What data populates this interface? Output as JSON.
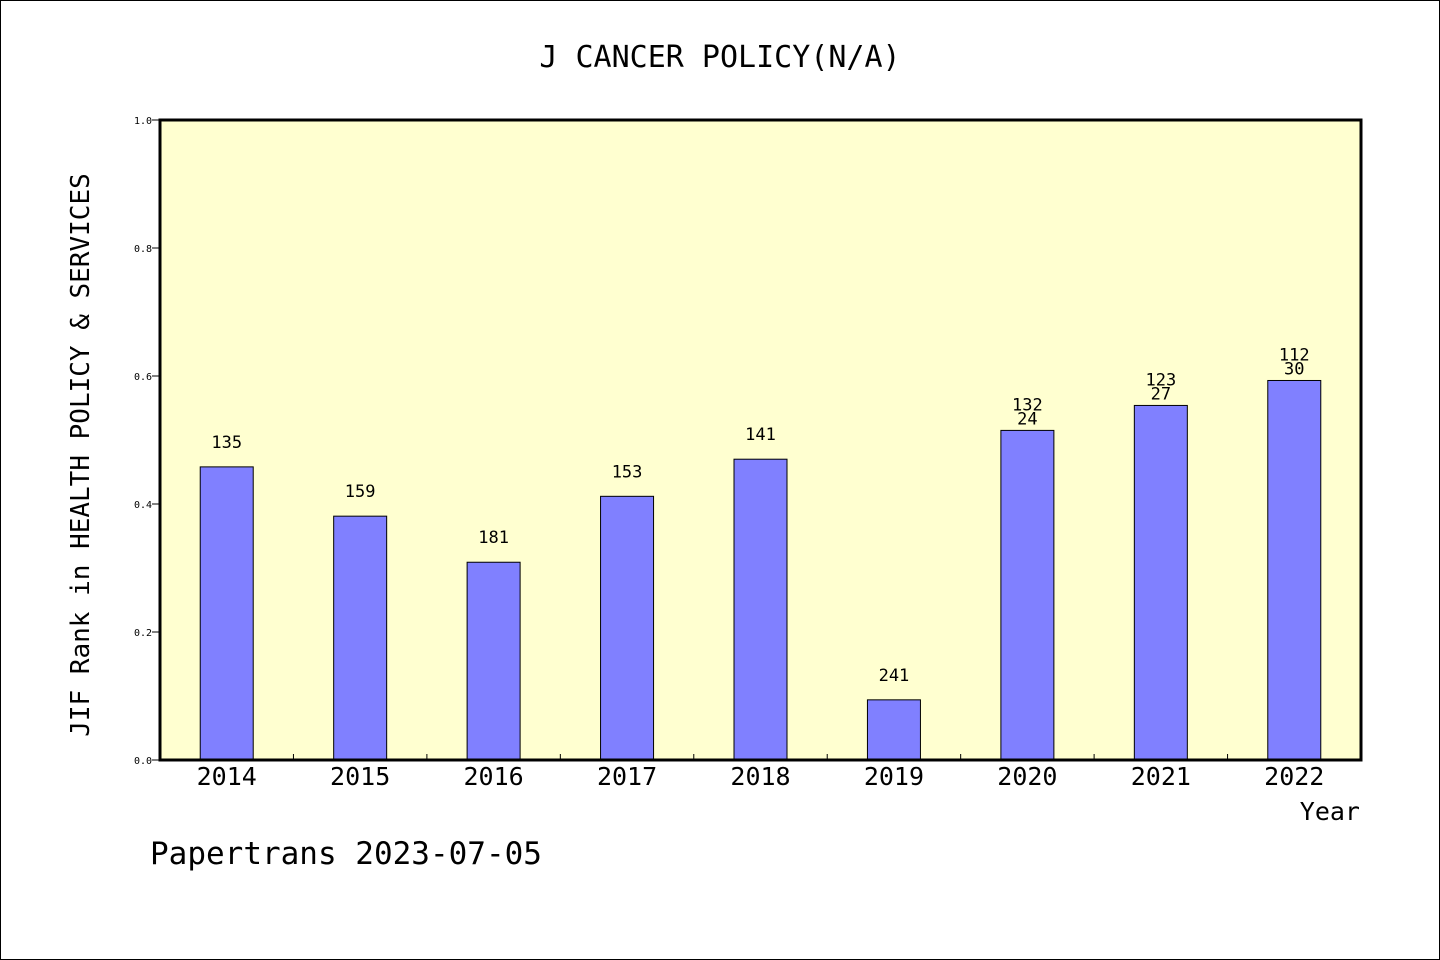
{
  "chart_data": {
    "type": "bar",
    "title": "J CANCER POLICY(N/A)",
    "ylabel": "JIF Rank in HEALTH POLICY & SERVICES",
    "xlabel": "Year",
    "ylim": [
      0,
      1.0
    ],
    "yticks": [
      "0.0",
      "0.2",
      "0.4",
      "0.6",
      "0.8",
      "1.0"
    ],
    "categories": [
      "2014",
      "2015",
      "2016",
      "2017",
      "2018",
      "2019",
      "2020",
      "2021",
      "2022"
    ],
    "values": [
      0.458,
      0.381,
      0.309,
      0.412,
      0.47,
      0.094,
      0.515,
      0.554,
      0.593
    ],
    "labels": [
      [
        "135"
      ],
      [
        "159"
      ],
      [
        "181"
      ],
      [
        "153"
      ],
      [
        "141"
      ],
      [
        "241"
      ],
      [
        "132",
        "24"
      ],
      [
        "123",
        "27"
      ],
      [
        "112",
        "30"
      ]
    ],
    "grid": false,
    "colors": {
      "bar": "#8080ff",
      "plot_bg": "#ffffd0"
    }
  },
  "footer": "Papertrans 2023-07-05"
}
